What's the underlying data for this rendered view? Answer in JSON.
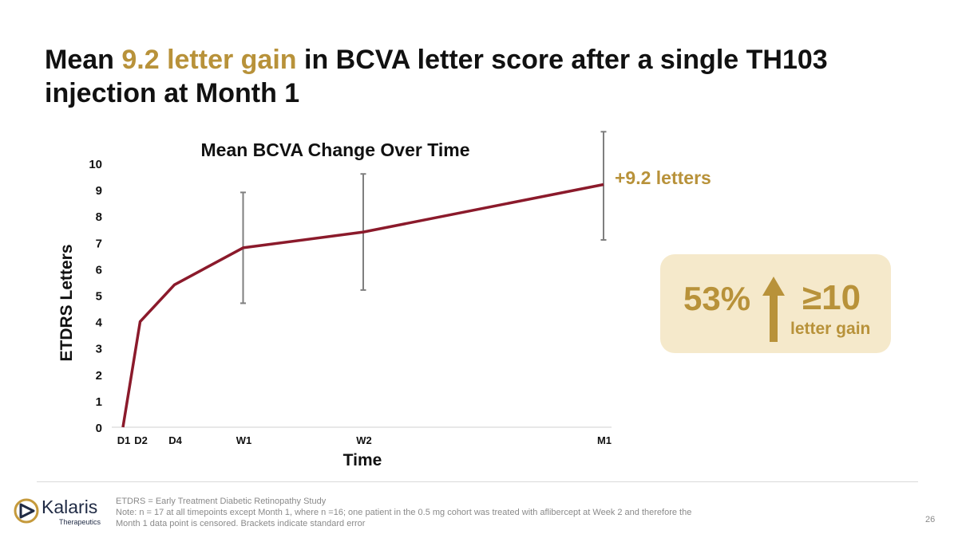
{
  "slide": {
    "title_pre": "Mean ",
    "title_accent": "9.2 letter gain",
    "title_post": " in BCVA letter score after a single TH103 injection at Month 1",
    "page_number": "26"
  },
  "chart_data": {
    "type": "line",
    "title": "Mean BCVA Change Over Time",
    "xlabel": "Time",
    "ylabel": "ETDRS Letters",
    "x": [
      0,
      1,
      3,
      7,
      14,
      28
    ],
    "xtick_labels": [
      "D1",
      "D2",
      "D4",
      "W1",
      "W2",
      "M1"
    ],
    "ylim": [
      0,
      10
    ],
    "yticks": [
      0,
      1,
      2,
      3,
      4,
      5,
      6,
      7,
      8,
      9,
      10
    ],
    "grid": false,
    "series": [
      {
        "values": [
          0,
          4.0,
          5.4,
          6.8,
          7.4,
          9.2
        ],
        "error_low": [
          null,
          null,
          null,
          4.7,
          5.2,
          7.1
        ],
        "error_high": [
          null,
          null,
          null,
          8.9,
          9.6,
          11.2
        ],
        "color": "#8b1a2b"
      }
    ],
    "annotation": "+9.2 letters",
    "error_bar_color": "#7f7f7f"
  },
  "callout": {
    "percent": "53%",
    "threshold": "≥10",
    "caption": "letter gain",
    "icon": "up-arrow-icon"
  },
  "footer": {
    "logo_name": "Kalaris",
    "logo_sub": "Therapeutics",
    "notes": [
      "ETDRS = Early Treatment Diabetic Retinopathy Study",
      "Note: n = 17 at all timepoints except Month 1, where n =16; one patient in the 0.5 mg cohort was treated with aflibercept at Week 2 and therefore the",
      "Month 1 data point is censored. Brackets indicate standard error"
    ]
  },
  "colors": {
    "accent_gold": "#b8923a",
    "line_red": "#8b1a2b",
    "callout_bg": "#f5e9cb"
  }
}
